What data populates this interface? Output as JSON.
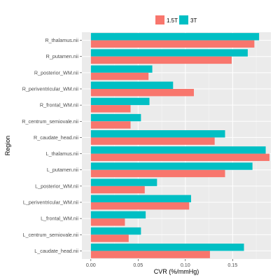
{
  "chart_data": {
    "type": "bar",
    "orientation": "horizontal",
    "categories": [
      "R_thalamus.nii",
      "R_putamen.nii",
      "R_posterior_WM.nii",
      "R_periventricular_WM.nii",
      "R_frontal_WM.nii",
      "R_centrum_semiovale.nii",
      "R_caudate_head.nii",
      "L_thalamus.nii",
      "L_putamen.nii",
      "L_posterior_WM.nii",
      "L_periventricular_WM.nii",
      "L_frontal_WM.nii",
      "L_centrum_semiovale.nii",
      "L_caudate_head.nii"
    ],
    "series": [
      {
        "name": "1.5T",
        "color": "#F8766D",
        "values": [
          0.173,
          0.149,
          0.061,
          0.109,
          0.042,
          0.042,
          0.131,
          0.189,
          0.142,
          0.057,
          0.104,
          0.036,
          0.04,
          0.126
        ]
      },
      {
        "name": "3T",
        "color": "#00BFC4",
        "values": [
          0.178,
          0.166,
          0.065,
          0.087,
          0.062,
          0.053,
          0.142,
          0.185,
          0.171,
          0.07,
          0.106,
          0.058,
          0.053,
          0.162
        ]
      }
    ],
    "xlabel": "CVR (%/mmHg)",
    "ylabel": "Region",
    "xlim": [
      -0.0095,
      0.1905
    ],
    "xticks": [
      "0.00",
      "0.05",
      "0.10",
      "0.15"
    ],
    "grid": true,
    "legend_position": "top"
  },
  "colors": {
    "panel_background": "#EBEBEB",
    "grid_major": "#FFFFFF",
    "tick_text": "#4D4D4D"
  }
}
